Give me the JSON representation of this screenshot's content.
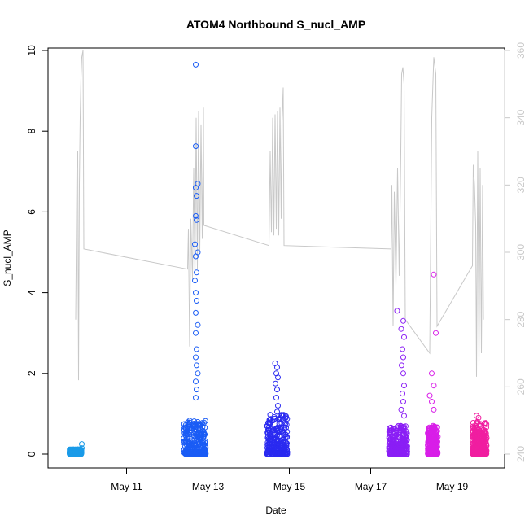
{
  "chart_data": {
    "type": "scatter",
    "title": "ATOM4 Northbound S_nucl_AMP",
    "xlabel": "Date",
    "ylabel": "S_nucl_AMP",
    "x_ticks": [
      "May 11",
      "May 13",
      "May 15",
      "May 17",
      "May 19"
    ],
    "x_tick_days": [
      11,
      13,
      15,
      17,
      19
    ],
    "xlim_days": [
      9.45,
      19.95
    ],
    "ylim": [
      0,
      10
    ],
    "y_ticks": [
      "0",
      "2",
      "4",
      "6",
      "8",
      "10"
    ],
    "y_tick_values": [
      0,
      2,
      4,
      6,
      8,
      10
    ],
    "y2lim": [
      240,
      360
    ],
    "y2_ticks": [
      "240",
      "260",
      "280",
      "300",
      "320",
      "340",
      "360"
    ],
    "y2_tick_values": [
      240,
      260,
      280,
      300,
      320,
      340,
      360
    ],
    "secondary_line_color": "#c8c8c8",
    "series": [
      {
        "color": "#1a9be8",
        "x": [
          9.65,
          9.7,
          9.75,
          9.8,
          9.85,
          9.9,
          9.8,
          9.9
        ],
        "y": [
          0.02,
          0.05,
          0.04,
          0.08,
          0.1,
          0.15,
          0.12,
          0.25
        ],
        "bulk": {
          "x0": 9.6,
          "x1": 9.9,
          "ymax": 0.12
        }
      },
      {
        "color": "#1a5cf5",
        "x": [
          12.7,
          12.7,
          12.75,
          12.7,
          12.72,
          12.7,
          12.72,
          12.68,
          12.75,
          12.7,
          12.72,
          12.68,
          12.7,
          12.72,
          12.7,
          12.75,
          12.7,
          12.72,
          12.7,
          12.72,
          12.75,
          12.7,
          12.72,
          12.7
        ],
        "y": [
          9.65,
          7.63,
          6.7,
          6.6,
          6.4,
          5.9,
          5.8,
          5.2,
          5.0,
          4.9,
          4.5,
          4.3,
          4.0,
          3.8,
          3.5,
          3.2,
          3.0,
          2.6,
          2.4,
          2.2,
          2.0,
          1.8,
          1.6,
          1.4
        ],
        "bulk": {
          "x0": 12.4,
          "x1": 12.95,
          "ymax": 0.85
        }
      },
      {
        "color": "#2a2af0",
        "x": [
          14.65,
          14.7,
          14.68,
          14.72,
          14.66,
          14.7,
          14.68,
          14.72,
          14.7
        ],
        "y": [
          2.25,
          2.15,
          2.0,
          1.9,
          1.75,
          1.6,
          1.4,
          1.2,
          1.05
        ],
        "bulk": {
          "x0": 14.45,
          "x1": 14.95,
          "ymax": 1.0
        }
      },
      {
        "color": "#8a1ef5",
        "x": [
          17.65,
          17.8,
          17.75,
          17.82,
          17.78,
          17.8,
          17.76,
          17.8,
          17.82,
          17.78,
          17.8,
          17.75,
          17.82
        ],
        "y": [
          3.55,
          3.3,
          3.1,
          2.9,
          2.6,
          2.4,
          2.2,
          2.0,
          1.7,
          1.5,
          1.3,
          1.1,
          0.95
        ],
        "bulk": {
          "x0": 17.45,
          "x1": 17.9,
          "ymax": 0.7
        }
      },
      {
        "color": "#d81ee8",
        "x": [
          18.55,
          18.6,
          18.5,
          18.55,
          18.45,
          18.5,
          18.55
        ],
        "y": [
          4.45,
          3.0,
          2.0,
          1.7,
          1.45,
          1.3,
          1.1
        ],
        "bulk": {
          "x0": 18.4,
          "x1": 18.65,
          "ymax": 0.7
        }
      },
      {
        "color": "#f01ea0",
        "x": [
          19.6,
          19.65,
          19.62,
          19.7,
          19.8,
          19.75
        ],
        "y": [
          0.95,
          0.9,
          0.8,
          0.7,
          0.35,
          0.2
        ],
        "bulk": {
          "x0": 19.5,
          "x1": 19.85,
          "ymax": 0.8
        }
      }
    ],
    "secondary_line": [
      [
        9.75,
        280
      ],
      [
        9.78,
        325
      ],
      [
        9.8,
        330
      ],
      [
        9.82,
        262
      ],
      [
        9.84,
        320
      ],
      [
        9.86,
        340
      ],
      [
        9.88,
        352
      ],
      [
        9.9,
        358
      ],
      [
        9.93,
        360
      ],
      [
        9.95,
        301
      ],
      [
        12.5,
        295
      ],
      [
        12.52,
        307
      ],
      [
        12.55,
        272
      ],
      [
        12.58,
        310
      ],
      [
        12.62,
        292
      ],
      [
        12.65,
        325
      ],
      [
        12.68,
        292
      ],
      [
        12.71,
        340
      ],
      [
        12.74,
        295
      ],
      [
        12.77,
        342
      ],
      [
        12.8,
        300
      ],
      [
        12.83,
        338
      ],
      [
        12.86,
        304
      ],
      [
        12.89,
        343
      ],
      [
        12.9,
        308
      ],
      [
        14.5,
        302
      ],
      [
        14.53,
        330
      ],
      [
        14.56,
        306
      ],
      [
        14.59,
        340
      ],
      [
        14.62,
        305
      ],
      [
        14.65,
        341
      ],
      [
        14.68,
        307
      ],
      [
        14.71,
        342
      ],
      [
        14.74,
        305
      ],
      [
        14.77,
        343
      ],
      [
        14.8,
        310
      ],
      [
        14.82,
        339
      ],
      [
        14.85,
        349
      ],
      [
        14.87,
        302
      ],
      [
        17.5,
        301
      ],
      [
        17.52,
        320
      ],
      [
        17.55,
        278
      ],
      [
        17.58,
        318
      ],
      [
        17.62,
        290
      ],
      [
        17.66,
        325
      ],
      [
        17.7,
        293
      ],
      [
        17.74,
        330
      ],
      [
        17.76,
        353
      ],
      [
        17.79,
        355
      ],
      [
        17.82,
        350
      ],
      [
        17.85,
        280
      ],
      [
        18.45,
        270
      ],
      [
        18.5,
        340
      ],
      [
        18.55,
        358
      ],
      [
        18.6,
        353
      ],
      [
        18.63,
        278
      ],
      [
        19.5,
        296
      ],
      [
        19.52,
        326
      ],
      [
        19.55,
        320
      ],
      [
        19.58,
        308
      ],
      [
        19.6,
        263
      ],
      [
        19.63,
        330
      ],
      [
        19.66,
        266
      ],
      [
        19.69,
        325
      ],
      [
        19.72,
        270
      ],
      [
        19.75,
        320
      ],
      [
        19.77,
        280
      ]
    ]
  }
}
